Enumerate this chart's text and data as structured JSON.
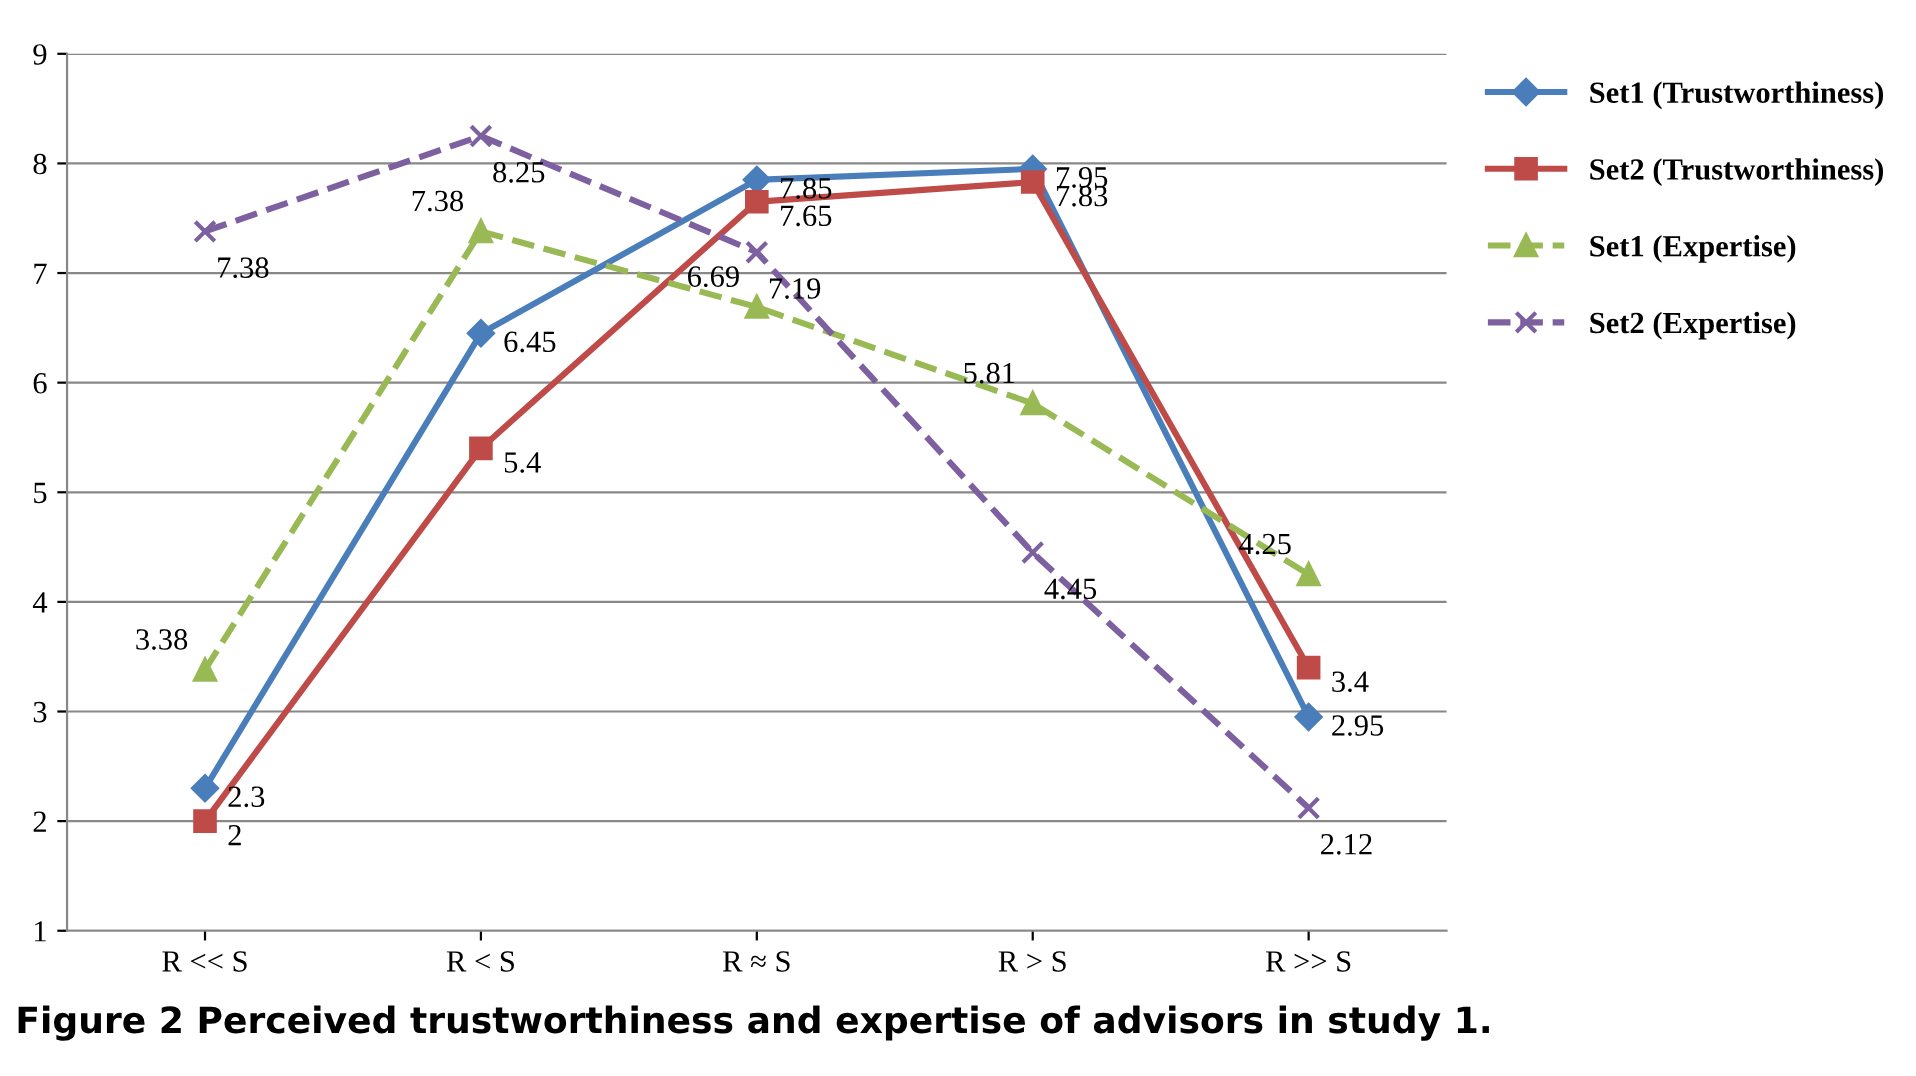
{
  "chart_data": {
    "type": "line",
    "title": "Figure 2 Perceived trustworthiness and expertise of advisors in study 1.",
    "categories": [
      "R << S",
      "R < S",
      "R ≈ S",
      "R > S",
      "R >> S"
    ],
    "series": [
      {
        "name": "Set1 (Trustworthiness)",
        "color": "#4a7ebb",
        "marker": "diamond",
        "line_style": "solid",
        "values": [
          2.3,
          6.45,
          7.85,
          7.95,
          2.95
        ]
      },
      {
        "name": "Set2 (Trustworthiness)",
        "color": "#be4b48",
        "marker": "square",
        "line_style": "solid",
        "values": [
          2,
          5.4,
          7.65,
          7.83,
          3.4
        ]
      },
      {
        "name": "Set1 (Expertise)",
        "color": "#98b954",
        "marker": "triangle",
        "line_style": "dashed",
        "values": [
          3.38,
          7.38,
          6.69,
          5.81,
          4.25
        ]
      },
      {
        "name": "Set2 (Expertise)",
        "color": "#7d60a0",
        "marker": "cross",
        "line_style": "dashed",
        "values": [
          7.38,
          8.25,
          7.19,
          4.45,
          2.12
        ]
      }
    ],
    "ylim": [
      1,
      9
    ],
    "yticks": [
      1,
      2,
      3,
      4,
      5,
      6,
      7,
      8,
      9
    ],
    "grid": "y",
    "legend": "right",
    "data_labels": true
  }
}
